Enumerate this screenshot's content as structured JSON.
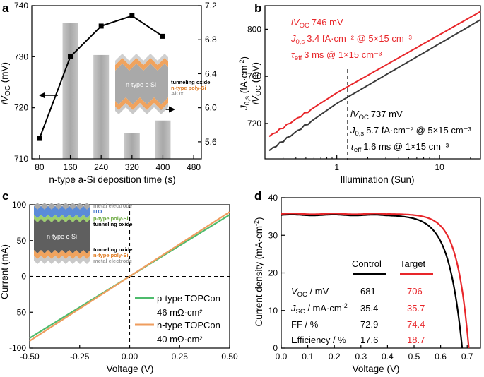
{
  "chart_data": [
    {
      "panel": "a",
      "type": "bar+line",
      "xlabel": "n-type a-Si deposition time (s)",
      "x_ticks": [
        80,
        160,
        240,
        320,
        400,
        480
      ],
      "xlim": [
        60,
        500
      ],
      "ylabel_left": "iV_OC (mV)",
      "ylabel_right": "J_0,s (fA·cm⁻²)",
      "ylim_left": [
        710,
        740
      ],
      "yticks_left": [
        710,
        720,
        730,
        740
      ],
      "ylim_right": [
        5.4,
        7.2
      ],
      "yticks_right": [
        5.6,
        6.0,
        6.4,
        6.8,
        7.2
      ],
      "bars": {
        "name": "J0,s",
        "x": [
          160,
          240,
          320,
          400
        ],
        "values": [
          7.0,
          6.62,
          5.7,
          5.85
        ]
      },
      "line": {
        "name": "iVoc",
        "x": [
          80,
          160,
          240,
          320,
          400
        ],
        "values": [
          714,
          730,
          736,
          738,
          734
        ]
      },
      "inset": {
        "layers": [
          "tunneling oxide",
          "n-type poly-Si",
          "AlOx"
        ],
        "core_label": "n-type c-Si"
      }
    },
    {
      "panel": "b",
      "type": "line",
      "xscale": "log",
      "xlabel": "Illumination (Sun)",
      "ylabel": "iV_OC (mV)",
      "xlim": [
        0.2,
        25
      ],
      "x_ticks": [
        1,
        10
      ],
      "ylim": [
        690,
        820
      ],
      "yticks": [
        720,
        760,
        800
      ],
      "series": [
        {
          "name": "Target",
          "color": "#e8262a",
          "points": [
            [
              0.22,
              709
            ],
            [
              1,
              746
            ],
            [
              25,
              815
            ]
          ],
          "annotation": {
            "ivoc": "746 mV",
            "j0": "3.4 fA·cm⁻² @ 5×15 cm⁻³",
            "teff": "3 ms @ 1×15 cm⁻³"
          }
        },
        {
          "name": "Control",
          "color": "#3a3a3a",
          "points": [
            [
              0.22,
              697
            ],
            [
              1,
              737
            ],
            [
              25,
              808
            ]
          ],
          "annotation": {
            "ivoc": "737 mV",
            "j0": "5.7 fA·cm⁻² @ 5×15 cm⁻³",
            "teff": "1.6 ms @ 1×15 cm⁻³"
          }
        }
      ]
    },
    {
      "panel": "c",
      "type": "line",
      "xlabel": "Voltage (V)",
      "ylabel": "Current (mA)",
      "xlim": [
        -0.5,
        0.5
      ],
      "ylim": [
        -100,
        100
      ],
      "x_ticks": [
        -0.5,
        -0.25,
        0.0,
        0.25,
        0.5
      ],
      "y_ticks": [
        -100,
        -50,
        0,
        50,
        100
      ],
      "series": [
        {
          "name": "p-type TOPCon",
          "label": "46 mΩ·cm²",
          "color": "#4dbb6c",
          "x": [
            -0.5,
            0.5
          ],
          "y": [
            -86,
            86
          ]
        },
        {
          "name": "n-type TOPCon",
          "label": "40 mΩ·cm²",
          "color": "#ef9d5e",
          "x": [
            -0.5,
            0.5
          ],
          "y": [
            -90,
            90
          ]
        }
      ],
      "inset": {
        "core_label": "n-type c-Si",
        "top_layers": [
          "metal electrode",
          "ITO",
          "p-type poly-Si",
          "tunneling oxide"
        ],
        "bottom_layers": [
          "tunneling oxide",
          "n-type poly-Si",
          "metal electrode"
        ]
      }
    },
    {
      "panel": "d",
      "type": "line",
      "xlabel": "Voltage (V)",
      "ylabel": "Current density (mA·cm⁻²)",
      "xlim": [
        0.0,
        0.75
      ],
      "ylim": [
        0,
        40
      ],
      "x_ticks": [
        0.0,
        0.1,
        0.2,
        0.3,
        0.4,
        0.5,
        0.6,
        0.7
      ],
      "y_ticks": [
        0,
        10,
        20,
        30,
        40
      ],
      "series": [
        {
          "name": "Control",
          "color": "#000000",
          "voc": 0.681,
          "jsc": 35.4,
          "ff": 72.9,
          "eff": 17.6
        },
        {
          "name": "Target",
          "color": "#e8262a",
          "voc": 0.706,
          "jsc": 35.7,
          "ff": 74.4,
          "eff": 18.7
        }
      ],
      "table": {
        "headers": [
          "Control",
          "Target"
        ],
        "rows": [
          {
            "label": "V_OC / mV",
            "control": "681",
            "target": "706"
          },
          {
            "label": "J_SC / mA·cm⁻²",
            "control": "35.4",
            "target": "35.7"
          },
          {
            "label": "FF / %",
            "control": "72.9",
            "target": "74.4"
          },
          {
            "label": "Efficiency / %",
            "control": "17.6",
            "target": "18.7"
          }
        ]
      }
    }
  ],
  "labels": {
    "panel_a": "a",
    "panel_b": "b",
    "panel_c": "c",
    "panel_d": "d",
    "a_xlabel": "n-type a-Si deposition time (s)",
    "a_inset_core": "n-type c-Si",
    "a_inset_l1": "tunneling oxide",
    "a_inset_l2": "n-type poly-Si",
    "a_inset_l3": "AlOx",
    "b_xlabel": "Illumination (Sun)",
    "b_red_ivoc": "746 mV",
    "b_red_j0": "3.4 fA·cm⁻² @ 5×15 cm⁻³",
    "b_red_teff": "3 ms @ 1×15 cm⁻³",
    "b_blk_ivoc": "737 mV",
    "b_blk_j0": "5.7 fA·cm⁻² @ 5×15 cm⁻³",
    "b_blk_teff": "1.6 ms @ 1×15 cm⁻³",
    "c_xlabel": "Voltage (V)",
    "c_ylabel": "Current (mA)",
    "c_leg1_name": "p-type TOPCon",
    "c_leg1_val": "46 mΩ·cm²",
    "c_leg2_name": "n-type TOPCon",
    "c_leg2_val": "40 mΩ·cm²",
    "c_inset_core": "n-type c-Si",
    "c_top1": "metal electrode",
    "c_top2": "ITO",
    "c_top3": "p-type poly-Si",
    "c_top4": "tunneling oxide",
    "c_bot1": "tunneling oxide",
    "c_bot2": "n-type poly-Si",
    "c_bot3": "metal electrode",
    "d_xlabel": "Voltage (V)",
    "d_hdr_control": "Control",
    "d_hdr_target": "Target",
    "d_fp": "Efficiency / %"
  },
  "colors": {
    "red": "#e8262a",
    "dark": "#3a3a3a",
    "green": "#4dbb6c",
    "orange": "#ef9d5e",
    "bar": "#b4b4b4",
    "bar_dark": "#9a9a9a"
  }
}
